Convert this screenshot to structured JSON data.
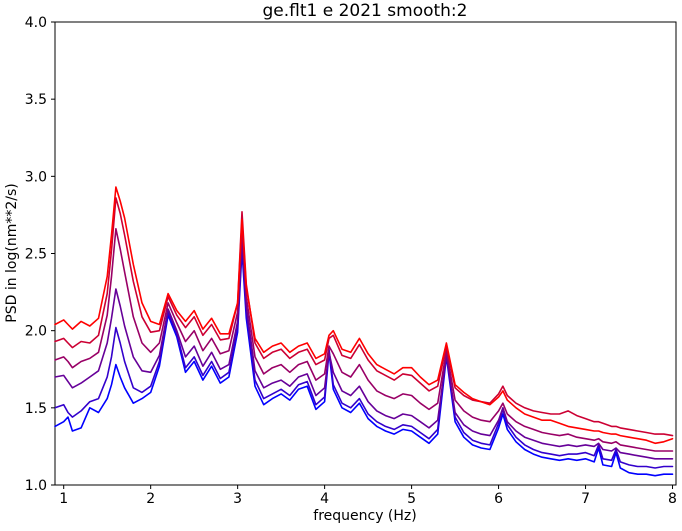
{
  "chart_data": {
    "type": "line",
    "title": "ge.flt1 e 2021 smooth:2",
    "xlabel": "frequency (Hz)",
    "ylabel": "PSD in log(nm**2/s)",
    "xlim": [
      0.9,
      8.04
    ],
    "ylim": [
      1.0,
      4.0
    ],
    "xticks": [
      "1",
      "2",
      "3",
      "4",
      "5",
      "6",
      "7",
      "8"
    ],
    "yticks": [
      "1.0",
      "1.5",
      "2.0",
      "2.5",
      "3.0",
      "3.5",
      "4.0"
    ],
    "grid": false,
    "legend": "none",
    "x": [
      0.9,
      1.0,
      1.05,
      1.1,
      1.2,
      1.3,
      1.4,
      1.5,
      1.55,
      1.6,
      1.65,
      1.7,
      1.8,
      1.9,
      2.0,
      2.1,
      2.2,
      2.3,
      2.4,
      2.5,
      2.6,
      2.7,
      2.8,
      2.9,
      3.0,
      3.05,
      3.1,
      3.2,
      3.3,
      3.4,
      3.5,
      3.6,
      3.7,
      3.8,
      3.9,
      4.0,
      4.05,
      4.1,
      4.2,
      4.3,
      4.4,
      4.5,
      4.6,
      4.7,
      4.8,
      4.9,
      5.0,
      5.1,
      5.2,
      5.3,
      5.4,
      5.5,
      5.6,
      5.7,
      5.8,
      5.9,
      6.0,
      6.05,
      6.1,
      6.2,
      6.3,
      6.4,
      6.5,
      6.6,
      6.7,
      6.8,
      6.9,
      7.0,
      7.1,
      7.15,
      7.2,
      7.3,
      7.35,
      7.4,
      7.5,
      7.6,
      7.7,
      7.8,
      7.9,
      8.0
    ],
    "series": [
      {
        "name": "line-1",
        "color": "#ff0000",
        "values": [
          2.04,
          2.07,
          2.04,
          2.01,
          2.06,
          2.03,
          2.08,
          2.35,
          2.62,
          2.93,
          2.84,
          2.73,
          2.43,
          2.18,
          2.06,
          2.04,
          2.24,
          2.13,
          2.06,
          2.13,
          2.01,
          2.08,
          1.98,
          1.98,
          2.18,
          2.72,
          2.28,
          1.95,
          1.86,
          1.9,
          1.92,
          1.86,
          1.9,
          1.92,
          1.82,
          1.85,
          1.97,
          2.0,
          1.88,
          1.86,
          1.95,
          1.85,
          1.78,
          1.75,
          1.72,
          1.76,
          1.76,
          1.7,
          1.65,
          1.68,
          1.92,
          1.65,
          1.6,
          1.56,
          1.54,
          1.52,
          1.57,
          1.61,
          1.55,
          1.5,
          1.46,
          1.44,
          1.42,
          1.42,
          1.4,
          1.38,
          1.37,
          1.36,
          1.35,
          1.35,
          1.34,
          1.33,
          1.33,
          1.32,
          1.31,
          1.3,
          1.29,
          1.27,
          1.28,
          1.3
        ]
      },
      {
        "name": "line-2",
        "color": "#cc0033",
        "values": [
          1.93,
          1.95,
          1.92,
          1.89,
          1.93,
          1.92,
          1.97,
          2.24,
          2.52,
          2.86,
          2.76,
          2.62,
          2.32,
          2.09,
          1.99,
          2.0,
          2.22,
          2.1,
          2.02,
          2.09,
          1.97,
          2.04,
          1.94,
          1.95,
          2.18,
          2.77,
          2.3,
          1.92,
          1.82,
          1.86,
          1.88,
          1.82,
          1.86,
          1.88,
          1.78,
          1.81,
          1.95,
          1.97,
          1.84,
          1.82,
          1.91,
          1.81,
          1.74,
          1.71,
          1.68,
          1.72,
          1.71,
          1.66,
          1.61,
          1.64,
          1.9,
          1.63,
          1.58,
          1.55,
          1.54,
          1.53,
          1.59,
          1.64,
          1.58,
          1.53,
          1.5,
          1.48,
          1.47,
          1.46,
          1.46,
          1.48,
          1.45,
          1.43,
          1.41,
          1.41,
          1.4,
          1.38,
          1.38,
          1.37,
          1.36,
          1.35,
          1.34,
          1.33,
          1.33,
          1.32
        ]
      },
      {
        "name": "line-3",
        "color": "#990066",
        "values": [
          1.81,
          1.83,
          1.8,
          1.76,
          1.8,
          1.82,
          1.86,
          2.1,
          2.35,
          2.66,
          2.53,
          2.38,
          2.09,
          1.92,
          1.86,
          1.92,
          2.18,
          2.05,
          1.93,
          2.0,
          1.87,
          1.95,
          1.85,
          1.87,
          2.12,
          2.66,
          2.22,
          1.83,
          1.72,
          1.76,
          1.78,
          1.73,
          1.78,
          1.8,
          1.68,
          1.72,
          1.9,
          1.85,
          1.73,
          1.7,
          1.78,
          1.68,
          1.61,
          1.58,
          1.56,
          1.59,
          1.58,
          1.53,
          1.49,
          1.53,
          1.87,
          1.55,
          1.48,
          1.44,
          1.42,
          1.41,
          1.48,
          1.53,
          1.46,
          1.41,
          1.38,
          1.36,
          1.34,
          1.33,
          1.32,
          1.33,
          1.31,
          1.3,
          1.29,
          1.3,
          1.28,
          1.27,
          1.28,
          1.26,
          1.25,
          1.24,
          1.23,
          1.22,
          1.22,
          1.22
        ]
      },
      {
        "name": "line-4",
        "color": "#660099",
        "values": [
          1.7,
          1.71,
          1.67,
          1.63,
          1.66,
          1.7,
          1.74,
          1.92,
          2.08,
          2.27,
          2.16,
          2.03,
          1.83,
          1.74,
          1.73,
          1.84,
          2.14,
          2.0,
          1.83,
          1.9,
          1.77,
          1.86,
          1.75,
          1.78,
          2.06,
          2.6,
          2.16,
          1.74,
          1.63,
          1.66,
          1.68,
          1.64,
          1.7,
          1.72,
          1.58,
          1.63,
          1.86,
          1.73,
          1.61,
          1.58,
          1.64,
          1.54,
          1.48,
          1.45,
          1.43,
          1.46,
          1.45,
          1.41,
          1.37,
          1.42,
          1.84,
          1.47,
          1.39,
          1.35,
          1.33,
          1.32,
          1.42,
          1.5,
          1.41,
          1.35,
          1.31,
          1.29,
          1.27,
          1.26,
          1.25,
          1.26,
          1.25,
          1.26,
          1.25,
          1.27,
          1.23,
          1.22,
          1.24,
          1.21,
          1.2,
          1.19,
          1.18,
          1.17,
          1.17,
          1.17
        ]
      },
      {
        "name": "line-5",
        "color": "#3300cc",
        "values": [
          1.5,
          1.52,
          1.47,
          1.44,
          1.48,
          1.54,
          1.56,
          1.7,
          1.83,
          2.02,
          1.92,
          1.8,
          1.63,
          1.6,
          1.64,
          1.8,
          2.12,
          1.98,
          1.76,
          1.83,
          1.71,
          1.8,
          1.69,
          1.73,
          2.02,
          2.56,
          2.12,
          1.68,
          1.56,
          1.59,
          1.62,
          1.58,
          1.65,
          1.67,
          1.52,
          1.57,
          1.88,
          1.65,
          1.53,
          1.5,
          1.56,
          1.46,
          1.41,
          1.38,
          1.36,
          1.39,
          1.38,
          1.34,
          1.3,
          1.36,
          1.86,
          1.44,
          1.34,
          1.29,
          1.27,
          1.26,
          1.4,
          1.49,
          1.39,
          1.31,
          1.26,
          1.23,
          1.21,
          1.2,
          1.19,
          1.2,
          1.2,
          1.21,
          1.19,
          1.26,
          1.17,
          1.16,
          1.23,
          1.15,
          1.13,
          1.12,
          1.12,
          1.11,
          1.12,
          1.12
        ]
      },
      {
        "name": "line-6",
        "color": "#0000ff",
        "values": [
          1.38,
          1.41,
          1.44,
          1.35,
          1.37,
          1.5,
          1.47,
          1.56,
          1.65,
          1.78,
          1.7,
          1.63,
          1.53,
          1.56,
          1.6,
          1.77,
          2.1,
          1.96,
          1.73,
          1.8,
          1.68,
          1.77,
          1.66,
          1.7,
          1.99,
          2.52,
          2.08,
          1.64,
          1.52,
          1.56,
          1.59,
          1.55,
          1.62,
          1.64,
          1.49,
          1.54,
          1.86,
          1.62,
          1.5,
          1.47,
          1.53,
          1.43,
          1.38,
          1.35,
          1.33,
          1.36,
          1.35,
          1.31,
          1.27,
          1.33,
          1.83,
          1.41,
          1.31,
          1.26,
          1.24,
          1.23,
          1.37,
          1.46,
          1.36,
          1.28,
          1.23,
          1.2,
          1.18,
          1.17,
          1.16,
          1.17,
          1.16,
          1.17,
          1.15,
          1.24,
          1.13,
          1.12,
          1.21,
          1.11,
          1.08,
          1.07,
          1.07,
          1.06,
          1.07,
          1.07
        ]
      }
    ]
  }
}
